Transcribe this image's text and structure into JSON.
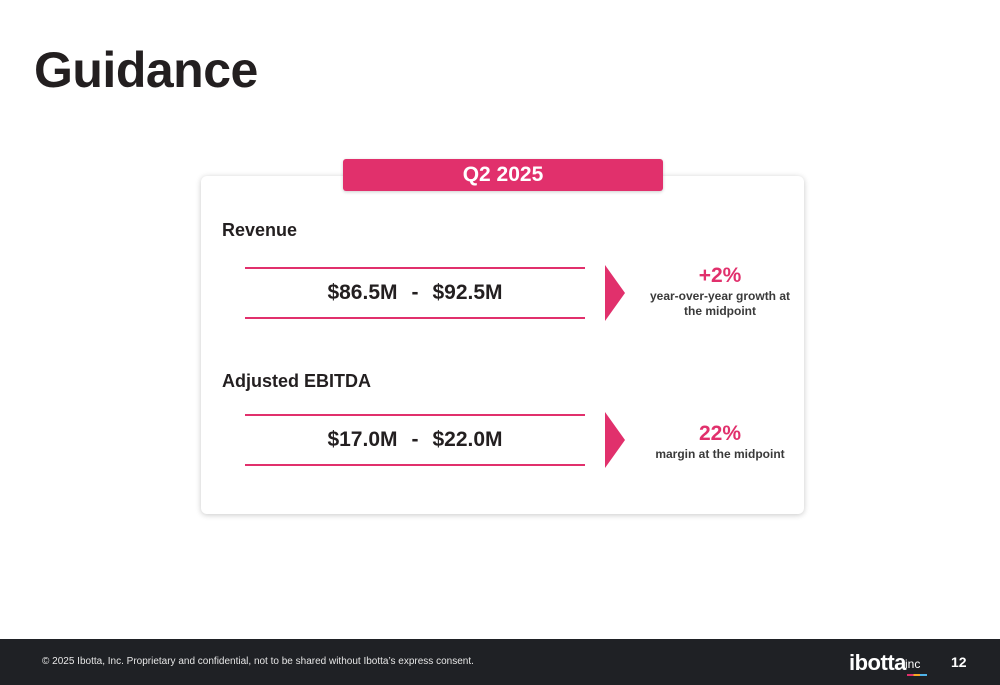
{
  "slide": {
    "title": "Guidance",
    "page_number": "12"
  },
  "card": {
    "period": "Q2 2025",
    "revenue": {
      "label": "Revenue",
      "low": "$86.5M",
      "separator": "-",
      "high": "$92.5M",
      "callout_value": "+2%",
      "callout_text": "year-over-year growth at the midpoint"
    },
    "ebitda": {
      "label": "Adjusted EBITDA",
      "low": "$17.0M",
      "separator": "-",
      "high": "$22.0M",
      "callout_value": "22%",
      "callout_text": "margin at the midpoint"
    }
  },
  "footer": {
    "disclaimer": "© 2025 Ibotta, Inc. Proprietary and confidential, not to be shared without Ibotta’s express consent.",
    "logo_text": "ibotta",
    "logo_suffix": "inc"
  },
  "colors": {
    "accent": "#e1306c",
    "footer_bg": "#1f2125",
    "text": "#231f20"
  }
}
